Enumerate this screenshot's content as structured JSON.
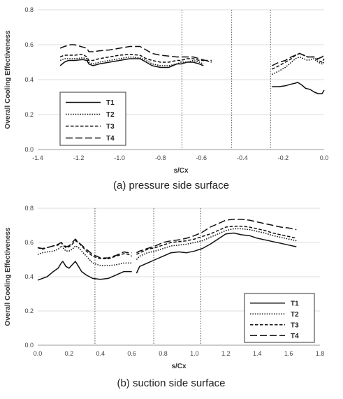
{
  "chart_data": [
    {
      "type": "line",
      "caption": "(a) pressure side surface",
      "xlabel": "s/Cx",
      "ylabel": "Overall Cooling Effectiveness",
      "xlim": [
        -1.4,
        0.0
      ],
      "ylim": [
        0.0,
        0.8
      ],
      "xticks": [
        "-1.4",
        "-1.2",
        "-1.0",
        "-0.8",
        "-0.6",
        "-0.4",
        "-0.2",
        "0.0"
      ],
      "yticks": [
        "0.0",
        "0.2",
        "0.4",
        "0.6",
        "0.8"
      ],
      "vlines": [
        -0.695,
        -0.452,
        -0.262
      ],
      "grid": "horizontal",
      "legend_position": "bottom-left",
      "series": [
        {
          "name": "T1",
          "style": "solid",
          "segments": [
            {
              "x": [
                -1.29,
                -1.27,
                -1.25,
                -1.22,
                -1.18,
                -1.16,
                -1.15,
                -1.13,
                -1.1,
                -1.05,
                -1.0,
                -0.95,
                -0.9,
                -0.87,
                -0.84,
                -0.8,
                -0.76,
                -0.72,
                -0.7,
                -0.67,
                -0.64,
                -0.61,
                -0.59
              ],
              "y": [
                0.48,
                0.5,
                0.51,
                0.51,
                0.515,
                0.51,
                0.49,
                0.48,
                0.49,
                0.5,
                0.51,
                0.52,
                0.52,
                0.5,
                0.48,
                0.47,
                0.47,
                0.49,
                0.49,
                0.5,
                0.5,
                0.49,
                0.48
              ]
            },
            {
              "x": [
                -0.255,
                -0.22,
                -0.19,
                -0.16,
                -0.14,
                -0.13,
                -0.11,
                -0.09,
                -0.07,
                -0.05,
                -0.03,
                -0.01,
                0.0
              ],
              "y": [
                0.36,
                0.36,
                0.365,
                0.375,
                0.38,
                0.385,
                0.37,
                0.35,
                0.345,
                0.33,
                0.32,
                0.32,
                0.34
              ]
            }
          ]
        },
        {
          "name": "T2",
          "style": "dotted",
          "segments": [
            {
              "x": [
                -1.29,
                -1.27,
                -1.25,
                -1.22,
                -1.18,
                -1.16,
                -1.15,
                -1.13,
                -1.1,
                -1.05,
                -1.0,
                -0.95,
                -0.9,
                -0.87,
                -0.84,
                -0.8,
                -0.76,
                -0.72,
                -0.7,
                -0.67,
                -0.64,
                -0.61,
                -0.59
              ],
              "y": [
                0.51,
                0.52,
                0.52,
                0.52,
                0.525,
                0.52,
                0.5,
                0.49,
                0.5,
                0.51,
                0.52,
                0.53,
                0.525,
                0.51,
                0.49,
                0.48,
                0.48,
                0.49,
                0.5,
                0.5,
                0.51,
                0.5,
                0.49
              ]
            },
            {
              "x": [
                -0.255,
                -0.22,
                -0.19,
                -0.16,
                -0.14,
                -0.12,
                -0.1,
                -0.08,
                -0.05,
                -0.03,
                -0.01,
                0.0
              ],
              "y": [
                0.43,
                0.45,
                0.47,
                0.5,
                0.52,
                0.53,
                0.52,
                0.51,
                0.52,
                0.5,
                0.49,
                0.5
              ]
            }
          ]
        },
        {
          "name": "T3",
          "style": "dashed",
          "segments": [
            {
              "x": [
                -1.29,
                -1.27,
                -1.25,
                -1.22,
                -1.18,
                -1.16,
                -1.15,
                -1.13,
                -1.1,
                -1.05,
                -1.0,
                -0.95,
                -0.9,
                -0.87,
                -0.84,
                -0.8,
                -0.76,
                -0.72,
                -0.7,
                -0.67,
                -0.64,
                -0.61,
                -0.58,
                -0.55
              ],
              "y": [
                0.53,
                0.54,
                0.54,
                0.54,
                0.545,
                0.53,
                0.51,
                0.51,
                0.52,
                0.53,
                0.54,
                0.545,
                0.54,
                0.52,
                0.51,
                0.5,
                0.5,
                0.51,
                0.51,
                0.52,
                0.52,
                0.51,
                0.51,
                0.5
              ]
            },
            {
              "x": [
                -0.255,
                -0.22,
                -0.19,
                -0.16,
                -0.14,
                -0.12,
                -0.1,
                -0.08,
                -0.05,
                -0.03,
                -0.01,
                0.0
              ],
              "y": [
                0.46,
                0.48,
                0.5,
                0.52,
                0.54,
                0.55,
                0.54,
                0.53,
                0.53,
                0.51,
                0.5,
                0.52
              ]
            }
          ]
        },
        {
          "name": "T4",
          "style": "longdash",
          "segments": [
            {
              "x": [
                -1.29,
                -1.27,
                -1.24,
                -1.22,
                -1.19,
                -1.16,
                -1.15,
                -1.13,
                -1.1,
                -1.05,
                -1.0,
                -0.95,
                -0.9,
                -0.87,
                -0.84,
                -0.8,
                -0.76,
                -0.72,
                -0.7,
                -0.67,
                -0.64,
                -0.61,
                -0.58,
                -0.55
              ],
              "y": [
                0.58,
                0.59,
                0.6,
                0.6,
                0.59,
                0.58,
                0.56,
                0.56,
                0.565,
                0.57,
                0.58,
                0.59,
                0.59,
                0.57,
                0.55,
                0.54,
                0.535,
                0.53,
                0.53,
                0.53,
                0.53,
                0.52,
                0.51,
                0.51
              ]
            },
            {
              "x": [
                -0.255,
                -0.22,
                -0.19,
                -0.16,
                -0.14,
                -0.12,
                -0.1,
                -0.08,
                -0.05,
                -0.03,
                -0.01,
                0.0
              ],
              "y": [
                0.48,
                0.5,
                0.51,
                0.53,
                0.54,
                0.55,
                0.54,
                0.53,
                0.53,
                0.52,
                0.53,
                0.54
              ]
            }
          ]
        }
      ]
    },
    {
      "type": "line",
      "caption": "(b) suction side surface",
      "xlabel": "s/Cx",
      "ylabel": "Overall Cooling Effectiveness",
      "xlim": [
        0.0,
        1.8
      ],
      "ylim": [
        0.0,
        0.8
      ],
      "xticks": [
        "0.0",
        "0.2",
        "0.4",
        "0.6",
        "0.8",
        "1.0",
        "1.2",
        "1.4",
        "1.6",
        "1.8"
      ],
      "yticks": [
        "0.0",
        "0.2",
        "0.4",
        "0.6",
        "0.8"
      ],
      "vlines": [
        0.365,
        0.74,
        1.04
      ],
      "grid": "horizontal",
      "legend_position": "bottom-right",
      "series": [
        {
          "name": "T1",
          "style": "solid",
          "segments": [
            {
              "x": [
                0.0,
                0.03,
                0.06,
                0.1,
                0.13,
                0.15,
                0.16,
                0.18,
                0.2,
                0.22,
                0.24,
                0.26,
                0.28,
                0.31,
                0.35,
                0.4,
                0.45,
                0.5,
                0.55,
                0.58,
                0.6
              ],
              "y": [
                0.38,
                0.39,
                0.4,
                0.43,
                0.45,
                0.48,
                0.49,
                0.46,
                0.45,
                0.47,
                0.49,
                0.46,
                0.43,
                0.41,
                0.39,
                0.385,
                0.39,
                0.41,
                0.43,
                0.43,
                0.43
              ]
            },
            {
              "x": [
                0.63,
                0.65,
                0.7,
                0.75,
                0.8,
                0.85,
                0.9,
                0.95,
                1.0,
                1.05,
                1.1,
                1.15,
                1.2,
                1.25,
                1.3,
                1.35,
                1.4,
                1.45,
                1.5,
                1.55,
                1.6,
                1.65
              ],
              "y": [
                0.42,
                0.46,
                0.48,
                0.5,
                0.52,
                0.54,
                0.545,
                0.54,
                0.55,
                0.565,
                0.59,
                0.62,
                0.65,
                0.655,
                0.645,
                0.64,
                0.625,
                0.615,
                0.605,
                0.595,
                0.585,
                0.575
              ]
            }
          ]
        },
        {
          "name": "T2",
          "style": "dotted",
          "segments": [
            {
              "x": [
                0.0,
                0.03,
                0.06,
                0.1,
                0.13,
                0.15,
                0.16,
                0.18,
                0.2,
                0.22,
                0.24,
                0.26,
                0.28,
                0.31,
                0.35,
                0.4,
                0.45,
                0.5,
                0.55,
                0.58,
                0.6
              ],
              "y": [
                0.53,
                0.54,
                0.545,
                0.55,
                0.56,
                0.58,
                0.57,
                0.55,
                0.55,
                0.56,
                0.58,
                0.57,
                0.55,
                0.52,
                0.48,
                0.465,
                0.465,
                0.47,
                0.48,
                0.48,
                0.48
              ]
            },
            {
              "x": [
                0.63,
                0.65,
                0.7,
                0.75,
                0.8,
                0.85,
                0.9,
                0.95,
                1.0,
                1.05,
                1.1,
                1.15,
                1.2,
                1.25,
                1.3,
                1.35,
                1.4,
                1.45,
                1.5,
                1.55,
                1.6,
                1.65
              ],
              "y": [
                0.5,
                0.52,
                0.54,
                0.55,
                0.565,
                0.58,
                0.585,
                0.59,
                0.6,
                0.61,
                0.63,
                0.65,
                0.67,
                0.68,
                0.68,
                0.675,
                0.665,
                0.655,
                0.64,
                0.63,
                0.62,
                0.61
              ]
            }
          ]
        },
        {
          "name": "T3",
          "style": "dashed",
          "segments": [
            {
              "x": [
                0.0,
                0.03,
                0.06,
                0.1,
                0.13,
                0.15,
                0.16,
                0.18,
                0.2,
                0.22,
                0.24,
                0.26,
                0.28,
                0.31,
                0.35,
                0.4,
                0.45,
                0.5,
                0.55,
                0.58,
                0.6
              ],
              "y": [
                0.57,
                0.56,
                0.57,
                0.58,
                0.585,
                0.6,
                0.585,
                0.57,
                0.575,
                0.59,
                0.61,
                0.6,
                0.58,
                0.55,
                0.52,
                0.505,
                0.505,
                0.52,
                0.535,
                0.53,
                0.52
              ]
            },
            {
              "x": [
                0.63,
                0.65,
                0.7,
                0.75,
                0.8,
                0.85,
                0.9,
                0.95,
                1.0,
                1.05,
                1.1,
                1.15,
                1.2,
                1.25,
                1.3,
                1.35,
                1.4,
                1.45,
                1.5,
                1.55,
                1.6,
                1.65
              ],
              "y": [
                0.53,
                0.54,
                0.56,
                0.57,
                0.585,
                0.6,
                0.605,
                0.61,
                0.62,
                0.635,
                0.65,
                0.67,
                0.69,
                0.695,
                0.695,
                0.69,
                0.68,
                0.67,
                0.655,
                0.645,
                0.635,
                0.625
              ]
            }
          ]
        },
        {
          "name": "T4",
          "style": "longdash",
          "segments": [
            {
              "x": [
                0.0,
                0.03,
                0.06,
                0.1,
                0.13,
                0.15,
                0.16,
                0.18,
                0.2,
                0.22,
                0.24,
                0.26,
                0.28,
                0.31,
                0.35,
                0.4,
                0.45,
                0.5,
                0.55,
                0.58,
                0.6
              ],
              "y": [
                0.57,
                0.565,
                0.57,
                0.58,
                0.59,
                0.6,
                0.59,
                0.575,
                0.58,
                0.6,
                0.62,
                0.6,
                0.585,
                0.56,
                0.53,
                0.51,
                0.51,
                0.525,
                0.545,
                0.54,
                0.54
              ]
            },
            {
              "x": [
                0.63,
                0.65,
                0.7,
                0.75,
                0.8,
                0.85,
                0.9,
                0.95,
                1.0,
                1.05,
                1.1,
                1.15,
                1.2,
                1.25,
                1.3,
                1.35,
                1.4,
                1.45,
                1.5,
                1.55,
                1.6,
                1.65
              ],
              "y": [
                0.54,
                0.55,
                0.565,
                0.58,
                0.6,
                0.61,
                0.615,
                0.625,
                0.64,
                0.66,
                0.69,
                0.71,
                0.73,
                0.735,
                0.735,
                0.73,
                0.72,
                0.71,
                0.7,
                0.69,
                0.685,
                0.675
              ]
            }
          ]
        }
      ]
    }
  ]
}
